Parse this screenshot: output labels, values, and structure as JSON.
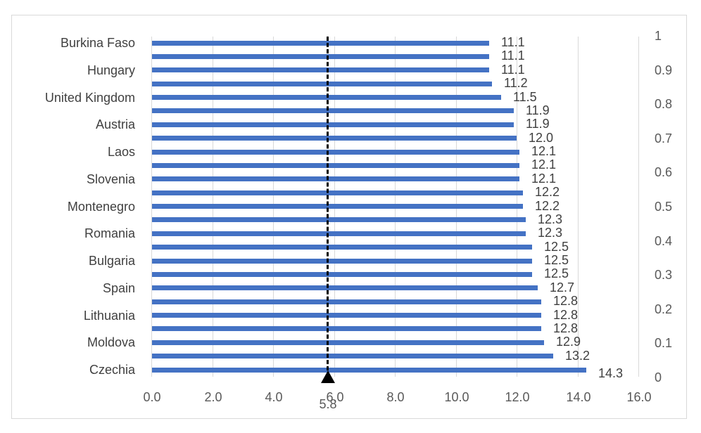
{
  "chart_data": {
    "type": "bar",
    "orientation": "horizontal",
    "title": "",
    "xlabel": "",
    "ylabel": "",
    "xlim": [
      0,
      16
    ],
    "x_ticks": [
      "0.0",
      "2.0",
      "4.0",
      "6.0",
      "8.0",
      "10.0",
      "12.0",
      "14.0",
      "16.0"
    ],
    "secondary_y_ticks": [
      "1",
      "0.9",
      "0.8",
      "0.7",
      "0.6",
      "0.5",
      "0.4",
      "0.3",
      "0.2",
      "0.1",
      "0"
    ],
    "secondary_ylim": [
      0,
      1
    ],
    "grid": "vertical",
    "legend": "none",
    "bar_color": "#4472c4",
    "reference_line": {
      "value": 5.8,
      "label": "5.8",
      "style": "dashed",
      "color": "#000000",
      "marker": "triangle"
    },
    "categories": [
      "Burkina Faso",
      "",
      "Hungary",
      "",
      "United Kingdom",
      "",
      "Austria",
      "",
      "Laos",
      "",
      "Slovenia",
      "",
      "Montenegro",
      "",
      "Romania",
      "",
      "Bulgaria",
      "",
      "Spain",
      "",
      "Lithuania",
      "",
      "Moldova",
      "",
      "Czechia"
    ],
    "values": [
      11.1,
      11.1,
      11.1,
      11.2,
      11.5,
      11.9,
      11.9,
      12.0,
      12.1,
      12.1,
      12.1,
      12.2,
      12.2,
      12.3,
      12.3,
      12.5,
      12.5,
      12.5,
      12.7,
      12.8,
      12.8,
      12.8,
      12.9,
      13.2,
      14.3
    ],
    "value_labels": [
      "11.1",
      "11.1",
      "11.1",
      "11.2",
      "11.5",
      "11.9",
      "11.9",
      "12.0",
      "12.1",
      "12.1",
      "12.1",
      "12.2",
      "12.2",
      "12.3",
      "12.3",
      "12.5",
      "12.5",
      "12.5",
      "12.7",
      "12.8",
      "12.8",
      "12.8",
      "12.9",
      "13.2",
      "14.3"
    ]
  }
}
